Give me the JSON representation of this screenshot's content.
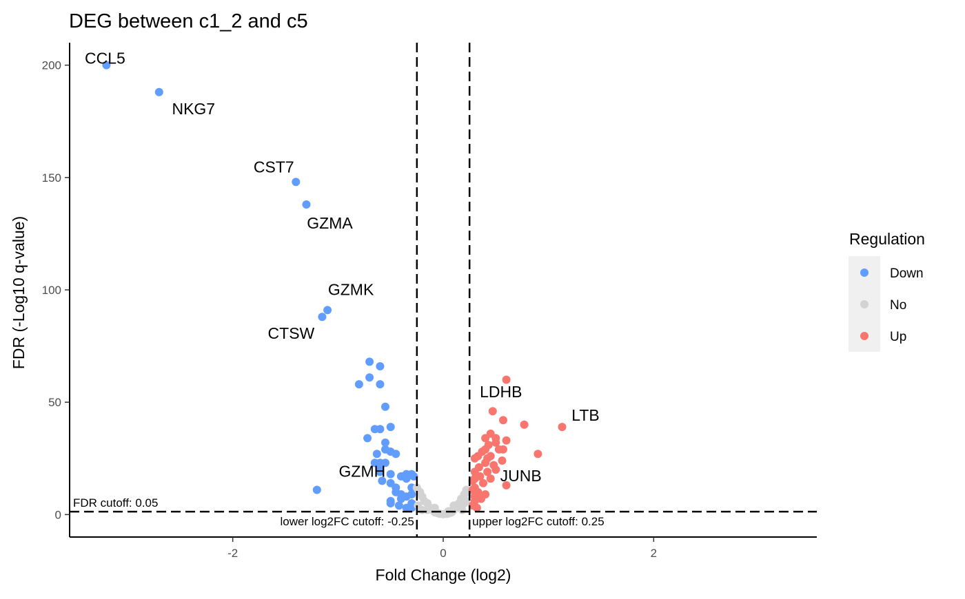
{
  "colors": {
    "Down": "#619CFF",
    "No": "#D3D3D3",
    "Up": "#F8766D"
  },
  "chart_data": {
    "type": "scatter",
    "title": "DEG between c1_2 and c5",
    "xlabel": "Fold Change (log2)",
    "ylabel": "FDR (-Log10 q-value)",
    "xlim": [
      -3.55,
      3.55
    ],
    "ylim": [
      -10,
      210
    ],
    "x_ticks": [
      -2,
      0,
      2
    ],
    "x_tick_labels": [
      "-2",
      "0",
      "2"
    ],
    "y_ticks": [
      0,
      50,
      100,
      150,
      200
    ],
    "y_tick_labels": [
      "0",
      "50",
      "100",
      "150",
      "200"
    ],
    "grid": false,
    "legend": {
      "title": "Regulation",
      "position": "right",
      "entries": [
        "Down",
        "No",
        "Up"
      ]
    },
    "cutoffs": {
      "fdr": 1.3,
      "lower_log2fc": -0.25,
      "upper_log2fc": 0.25,
      "fdr_label": "FDR cutoff: 0.05",
      "lower_label": "lower log2FC cutoff: -0.25",
      "upper_label": "upper log2FC cutoff: 0.25"
    },
    "series": [
      {
        "name": "Down",
        "points": [
          [
            -3.2,
            200
          ],
          [
            -2.7,
            188
          ],
          [
            -1.4,
            148
          ],
          [
            -1.3,
            138
          ],
          [
            -1.1,
            91
          ],
          [
            -1.15,
            88
          ],
          [
            -0.7,
            68
          ],
          [
            -0.6,
            66
          ],
          [
            -0.7,
            61
          ],
          [
            -0.8,
            58
          ],
          [
            -0.6,
            58
          ],
          [
            -0.55,
            48
          ],
          [
            -0.5,
            39
          ],
          [
            -0.65,
            38
          ],
          [
            -0.6,
            38
          ],
          [
            -0.72,
            34
          ],
          [
            -0.55,
            32
          ],
          [
            -0.55,
            29
          ],
          [
            -0.5,
            28
          ],
          [
            -0.45,
            27
          ],
          [
            -0.63,
            27
          ],
          [
            -0.65,
            23
          ],
          [
            -0.6,
            23
          ],
          [
            -0.55,
            23
          ],
          [
            -0.6,
            21
          ],
          [
            -0.6,
            19
          ],
          [
            -0.5,
            18
          ],
          [
            -0.35,
            18
          ],
          [
            -0.4,
            17
          ],
          [
            -0.3,
            18
          ],
          [
            -0.28,
            17
          ],
          [
            -0.35,
            16
          ],
          [
            -0.58,
            15
          ],
          [
            -0.5,
            14
          ],
          [
            -0.45,
            12
          ],
          [
            -0.45,
            10
          ],
          [
            -0.4,
            9
          ],
          [
            -0.35,
            8
          ],
          [
            -0.3,
            9
          ],
          [
            -0.3,
            12
          ],
          [
            -1.2,
            11
          ],
          [
            -0.5,
            6
          ],
          [
            -0.5,
            5
          ],
          [
            -0.42,
            4
          ],
          [
            -0.35,
            3
          ],
          [
            -0.3,
            5
          ],
          [
            -0.3,
            3
          ],
          [
            -0.4,
            7
          ]
        ]
      },
      {
        "name": "No",
        "points": [
          [
            -0.25,
            12
          ],
          [
            -0.2,
            8
          ],
          [
            -0.18,
            6
          ],
          [
            -0.15,
            5
          ],
          [
            -0.12,
            3
          ],
          [
            -0.1,
            2
          ],
          [
            -0.08,
            1
          ],
          [
            -0.05,
            0.6
          ],
          [
            -0.03,
            0.3
          ],
          [
            0,
            0.2
          ],
          [
            0.03,
            0.3
          ],
          [
            0.05,
            0.5
          ],
          [
            0.08,
            1
          ],
          [
            0.1,
            2
          ],
          [
            0.12,
            3
          ],
          [
            0.15,
            5
          ],
          [
            0.17,
            7
          ],
          [
            0.2,
            9
          ],
          [
            0.22,
            11
          ],
          [
            0.24,
            10
          ],
          [
            -0.22,
            10
          ],
          [
            -0.24,
            4
          ],
          [
            -0.15,
            2
          ],
          [
            0.18,
            2
          ],
          [
            0.2,
            5
          ],
          [
            -0.08,
            3
          ],
          [
            0.1,
            4
          ],
          [
            -0.2,
            2
          ],
          [
            0.22,
            6
          ],
          [
            0.05,
            1.5
          ]
        ]
      },
      {
        "name": "Up",
        "points": [
          [
            0.6,
            60
          ],
          [
            0.47,
            46
          ],
          [
            0.57,
            42
          ],
          [
            0.77,
            40
          ],
          [
            1.13,
            39
          ],
          [
            0.45,
            36
          ],
          [
            0.5,
            34
          ],
          [
            0.4,
            34
          ],
          [
            0.6,
            33
          ],
          [
            0.5,
            32
          ],
          [
            0.43,
            31
          ],
          [
            0.53,
            29
          ],
          [
            0.57,
            29
          ],
          [
            0.4,
            29
          ],
          [
            0.37,
            28
          ],
          [
            0.9,
            27
          ],
          [
            0.33,
            26
          ],
          [
            0.45,
            26
          ],
          [
            0.56,
            24
          ],
          [
            0.3,
            25
          ],
          [
            0.4,
            23
          ],
          [
            0.34,
            21
          ],
          [
            0.42,
            19
          ],
          [
            0.3,
            19
          ],
          [
            0.35,
            17
          ],
          [
            0.3,
            16
          ],
          [
            0.28,
            15
          ],
          [
            0.38,
            14
          ],
          [
            0.6,
            13
          ],
          [
            0.3,
            12
          ],
          [
            0.28,
            11
          ],
          [
            0.33,
            10
          ],
          [
            0.4,
            9
          ],
          [
            0.3,
            8
          ],
          [
            0.36,
            7
          ],
          [
            0.3,
            6
          ],
          [
            0.28,
            4
          ],
          [
            0.32,
            3
          ],
          [
            0.45,
            16
          ],
          [
            0.5,
            20
          ],
          [
            0.42,
            25
          ],
          [
            0.48,
            22
          ]
        ]
      }
    ],
    "annotations": [
      {
        "text": "CCL5",
        "x": -3.2,
        "y": 200
      },
      {
        "text": "NKG7",
        "x": -2.7,
        "y": 188
      },
      {
        "text": "CST7",
        "x": -1.4,
        "y": 148
      },
      {
        "text": "GZMA",
        "x": -1.3,
        "y": 138
      },
      {
        "text": "GZMK",
        "x": -1.1,
        "y": 91
      },
      {
        "text": "CTSW",
        "x": -1.15,
        "y": 88
      },
      {
        "text": "GZMH",
        "x": -0.6,
        "y": 19
      },
      {
        "text": "LDHB",
        "x": 0.47,
        "y": 46
      },
      {
        "text": "LTB",
        "x": 1.13,
        "y": 39
      },
      {
        "text": "JUNB",
        "x": 0.45,
        "y": 16
      }
    ]
  }
}
